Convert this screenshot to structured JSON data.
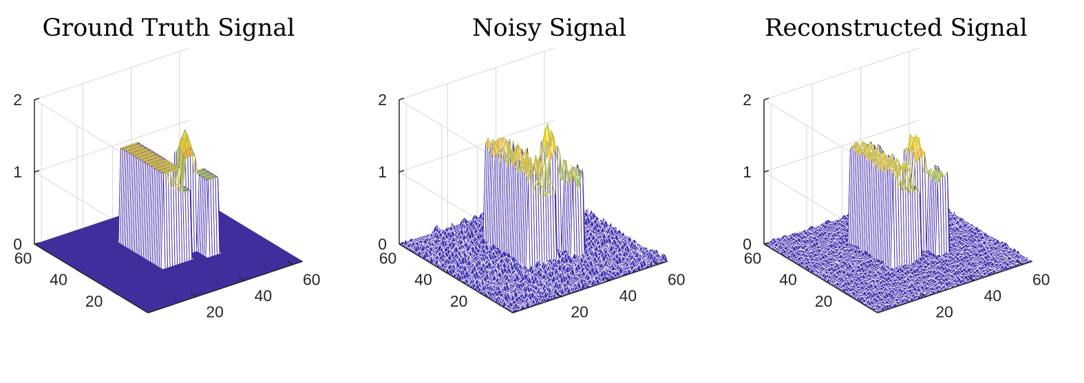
{
  "chart_data": [
    {
      "type": "surface",
      "title": "Ground Truth Signal",
      "xlabel": "",
      "ylabel": "",
      "zlabel": "",
      "xlim": [
        0,
        64
      ],
      "ylim": [
        0,
        64
      ],
      "zlim": [
        0,
        2
      ],
      "x_ticks": [
        20,
        40,
        60
      ],
      "y_ticks": [
        20,
        40,
        60
      ],
      "z_ticks": [
        0,
        1,
        2
      ],
      "grid": true,
      "noise": 0,
      "colormap": [
        "#3e26a8",
        "#2e7ff5",
        "#15c2c0",
        "#8cc67f",
        "#f1b93b",
        "#f9fb15"
      ]
    },
    {
      "type": "surface",
      "title": "Noisy Signal",
      "xlabel": "",
      "ylabel": "",
      "zlabel": "",
      "xlim": [
        0,
        64
      ],
      "ylim": [
        0,
        64
      ],
      "zlim": [
        0,
        2
      ],
      "x_ticks": [
        20,
        40,
        60
      ],
      "y_ticks": [
        20,
        40,
        60
      ],
      "z_ticks": [
        0,
        1,
        2
      ],
      "grid": true,
      "noise": 0.09,
      "colormap": [
        "#3e26a8",
        "#2e7ff5",
        "#15c2c0",
        "#8cc67f",
        "#f1b93b",
        "#f9fb15"
      ]
    },
    {
      "type": "surface",
      "title": "Reconstructed Signal",
      "xlabel": "",
      "ylabel": "",
      "zlabel": "",
      "xlim": [
        0,
        64
      ],
      "ylim": [
        0,
        64
      ],
      "zlim": [
        0,
        2
      ],
      "x_ticks": [
        20,
        40,
        60
      ],
      "y_ticks": [
        20,
        40,
        60
      ],
      "z_ticks": [
        0,
        1,
        2
      ],
      "grid": true,
      "noise": 0.045,
      "colormap": [
        "#3e26a8",
        "#2e7ff5",
        "#15c2c0",
        "#8cc67f",
        "#f1b93b",
        "#f9fb15"
      ]
    }
  ]
}
